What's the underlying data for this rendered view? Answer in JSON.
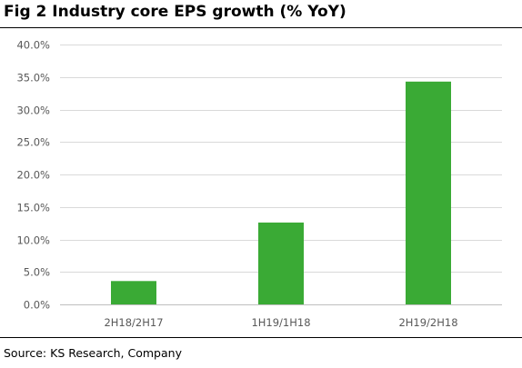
{
  "title": "Fig 2  Industry core EPS growth (% YoY)",
  "source": "Source: KS Research, Company",
  "colors": {
    "bar": "#3AAA35",
    "grid": "#D9D9D9",
    "axis": "#BFBFBF",
    "text": "#595959"
  },
  "chart_data": {
    "type": "bar",
    "title": "Fig 2  Industry core EPS growth (% YoY)",
    "categories": [
      "2H18/2H17",
      "1H19/1H18",
      "2H19/2H18"
    ],
    "values": [
      3.6,
      12.6,
      34.3
    ],
    "ylim": [
      0,
      40
    ],
    "yticks": [
      0,
      5,
      10,
      15,
      20,
      25,
      30,
      35,
      40
    ],
    "ytick_labels": [
      "0.0%",
      "5.0%",
      "10.0%",
      "15.0%",
      "20.0%",
      "25.0%",
      "30.0%",
      "35.0%",
      "40.0%"
    ],
    "unit": "%",
    "grid": true,
    "legend": false,
    "xlabel": "",
    "ylabel": ""
  }
}
